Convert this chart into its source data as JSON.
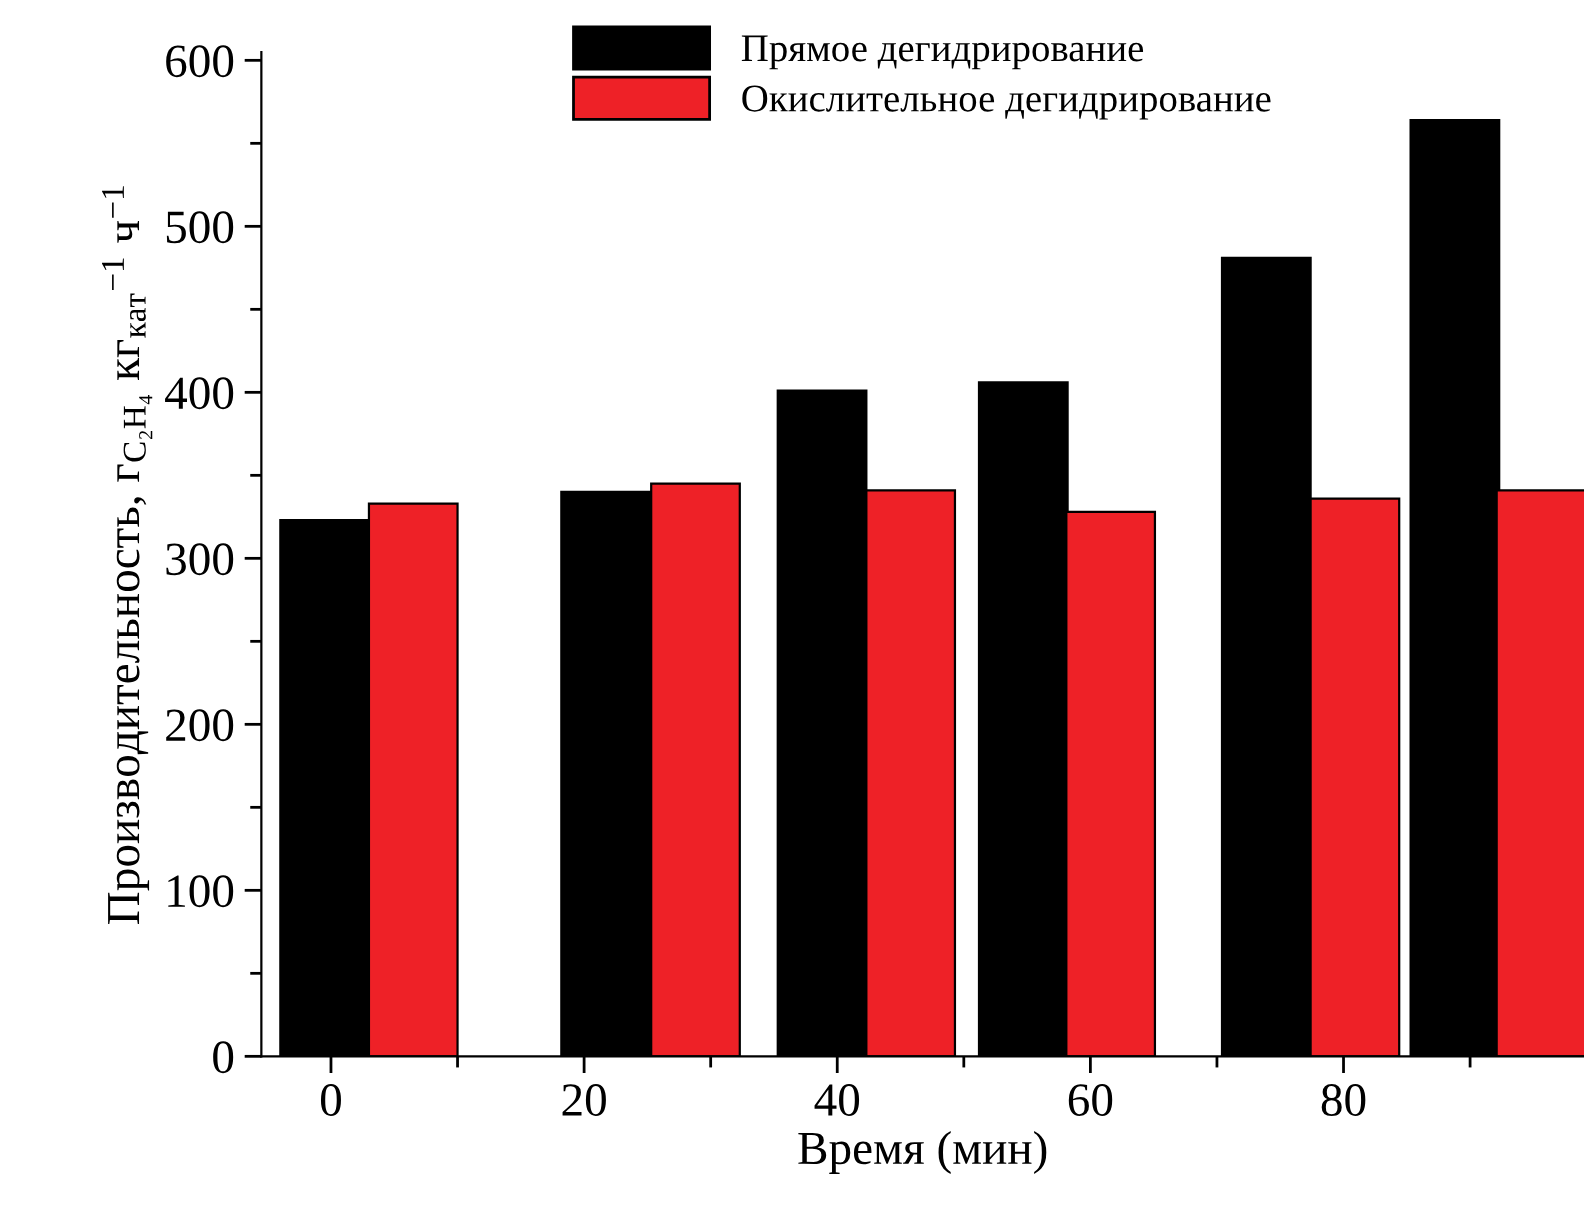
{
  "chart_data": {
    "type": "bar",
    "xlabel": "Время (мин)",
    "ylabel": "Производительность, г$_{C₂H₄}$ кг$_{кат}$$^{−1}$ ч$^{−1}$",
    "series": [
      {
        "name": "Прямое дегидрирование",
        "color": "#000000",
        "x": [
          -0.5,
          21.7,
          38.8,
          54.7,
          73.9,
          88.8
        ],
        "values": [
          323,
          340,
          401,
          406,
          481,
          564
        ]
      },
      {
        "name": "Окислительное дегидрирование",
        "color": "#ee2127",
        "x": [
          6.5,
          28.8,
          45.8,
          61.6,
          80.9,
          95.6
        ],
        "values": [
          333,
          345,
          341,
          328,
          336,
          341
        ]
      }
    ],
    "xlim": [
      -5.5,
      99
    ],
    "xticks": [
      0,
      20,
      40,
      60,
      80
    ],
    "ylim": [
      0,
      605
    ],
    "yticks": [
      0,
      100,
      200,
      300,
      400,
      500,
      600
    ],
    "grid": false,
    "legend": "top"
  }
}
